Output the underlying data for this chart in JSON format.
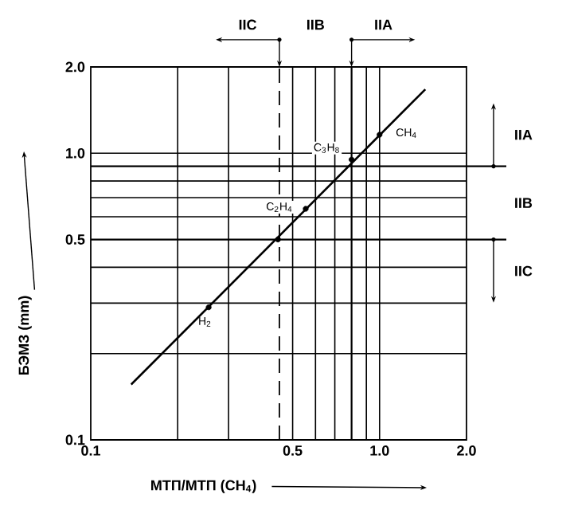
{
  "chart_data": {
    "type": "line",
    "xlabel": "МТП/МТП (CH$_{4}$)",
    "ylabel": "БЭМЗ (mm)",
    "log": "xy",
    "grid": true,
    "xlim": [
      0.1,
      2.0
    ],
    "ylim": [
      0.1,
      2.0
    ],
    "xticks": [
      0.1,
      {
        "value": 0.2,
        "label": null
      },
      {
        "value": 0.3,
        "label": null
      },
      0.5,
      {
        "value": 0.6,
        "label": null
      },
      {
        "value": 0.7,
        "label": null
      },
      {
        "value": 0.9,
        "label": null
      },
      {
        "value": 1.0,
        "label": "1.0"
      },
      {
        "value": 2.0,
        "label": "2.0"
      }
    ],
    "yticks": [
      0.1,
      {
        "value": 0.2,
        "label": null
      },
      {
        "value": 0.3,
        "label": null
      },
      {
        "value": 0.4,
        "label": null
      },
      0.5,
      {
        "value": 0.6,
        "label": null
      },
      {
        "value": 0.7,
        "label": null
      },
      {
        "value": 0.8,
        "label": null
      },
      {
        "value": 1.0,
        "label": "1.0"
      },
      {
        "value": 2.0,
        "label": "2.0"
      }
    ],
    "series": [
      {
        "color": "#000000",
        "marker": "none",
        "x": [
          0.138,
          1.44
        ],
        "values": [
          0.156,
          1.67
        ]
      },
      {
        "type": "scatter",
        "color": "#000000",
        "marker": "circle",
        "x": [
          0.256,
          0.445,
          0.555,
          0.8,
          1.0
        ],
        "values": [
          0.29,
          0.5,
          0.64,
          0.95,
          1.16
        ]
      }
    ],
    "ref_lines": [
      {
        "axis": "x",
        "value": 0.45,
        "line_style": "dashed"
      },
      {
        "axis": "x",
        "value": 0.8
      },
      {
        "axis": "y",
        "value": 0.9
      },
      {
        "axis": "y",
        "value": 0.5
      }
    ],
    "annotations": [
      "IIC",
      "IIB",
      "IIA",
      "IIA",
      "IIB",
      "IIC",
      {
        "text": "H$_{2}$",
        "x": 0.256,
        "y": 0.29
      },
      {
        "text": "C$_{2}$H$_{4}$",
        "x": 0.555,
        "y": 0.64
      },
      {
        "text": "C$_{3}$H$_{8}$",
        "x": 0.8,
        "y": 0.95
      },
      {
        "text": "CH$_{4}$",
        "x": 1.0,
        "y": 1.16
      }
    ]
  }
}
